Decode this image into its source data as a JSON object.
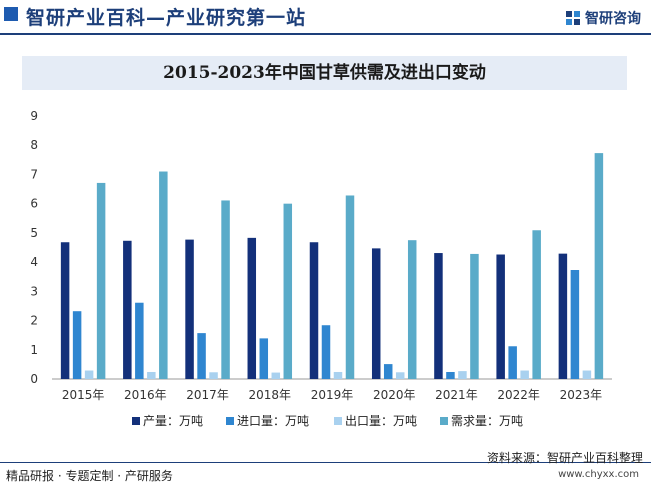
{
  "header": {
    "title": "智研产业百科—产业研究第一站",
    "brand": "智研咨询"
  },
  "footer": {
    "left": "精品研报 · 专题定制 · 产研服务",
    "source": "资料来源：智研产业百科整理",
    "url": "www.chyxx.com"
  },
  "colors": {
    "产量": "#13307a",
    "进口量": "#2f86d0",
    "出口量": "#a9d1ef",
    "需求量": "#5aabc9"
  },
  "chart_data": {
    "type": "bar",
    "title": "2015-2023年中国甘草供需及进出口变动",
    "categories": [
      "2015年",
      "2016年",
      "2017年",
      "2018年",
      "2019年",
      "2020年",
      "2021年",
      "2022年",
      "2023年"
    ],
    "series": [
      {
        "name": "产量：万吨",
        "values": [
          4.68,
          4.73,
          4.77,
          4.83,
          4.68,
          4.47,
          4.31,
          4.26,
          4.29
        ]
      },
      {
        "name": "进口量：万吨",
        "values": [
          2.32,
          2.61,
          1.57,
          1.39,
          1.84,
          0.51,
          0.24,
          1.12,
          3.73
        ]
      },
      {
        "name": "出口量：万吨",
        "values": [
          0.29,
          0.24,
          0.23,
          0.22,
          0.24,
          0.23,
          0.27,
          0.29,
          0.29
        ]
      },
      {
        "name": "需求量：万吨",
        "values": [
          6.71,
          7.1,
          6.11,
          6.0,
          6.28,
          4.75,
          4.28,
          5.09,
          7.73
        ]
      }
    ],
    "yticks": [
      0,
      1,
      2,
      3,
      4,
      5,
      6,
      7,
      8,
      9
    ],
    "ylim": [
      0,
      9
    ],
    "xlabel": "",
    "ylabel": "",
    "grid": false,
    "legend_position": "bottom"
  }
}
